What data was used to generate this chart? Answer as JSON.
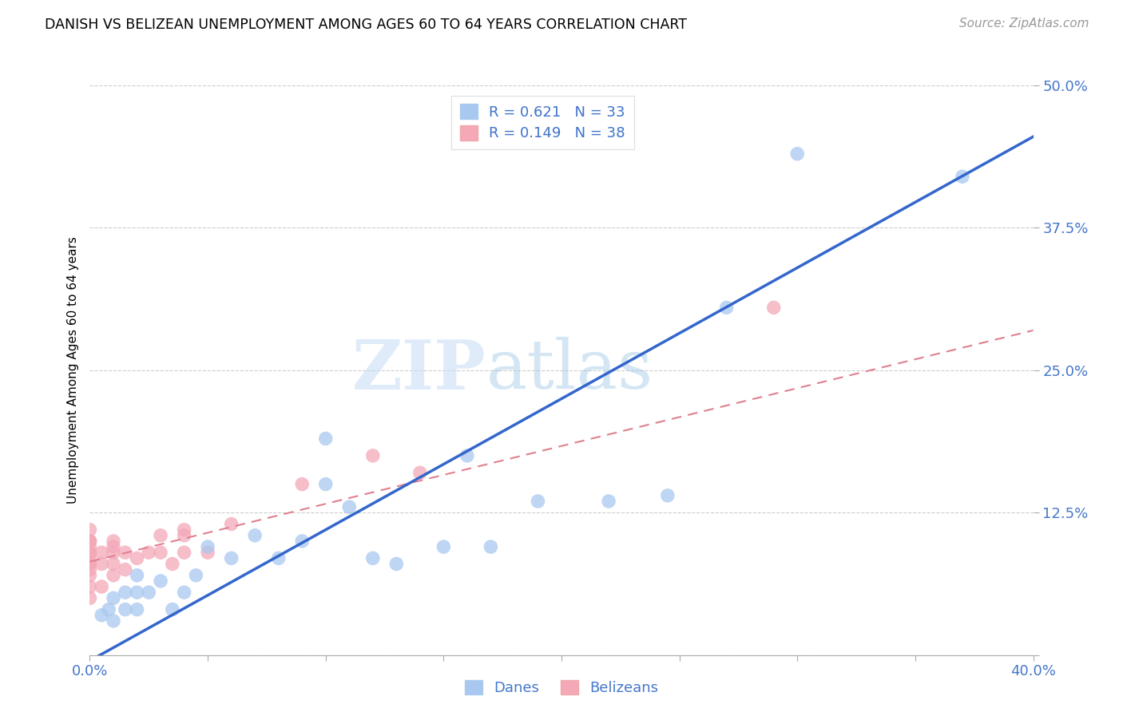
{
  "title": "DANISH VS BELIZEAN UNEMPLOYMENT AMONG AGES 60 TO 64 YEARS CORRELATION CHART",
  "source": "Source: ZipAtlas.com",
  "ylabel": "Unemployment Among Ages 60 to 64 years",
  "xlim": [
    0.0,
    0.4
  ],
  "ylim": [
    0.0,
    0.5
  ],
  "xticks": [
    0.0,
    0.05,
    0.1,
    0.15,
    0.2,
    0.25,
    0.3,
    0.35,
    0.4
  ],
  "yticks": [
    0.0,
    0.125,
    0.25,
    0.375,
    0.5
  ],
  "danes_color": "#A8C8F0",
  "belizeans_color": "#F4A8B8",
  "danes_line_color": "#3366CC",
  "belizeans_line_color": "#E08090",
  "danes_R": 0.621,
  "danes_N": 33,
  "belizeans_R": 0.149,
  "belizeans_N": 38,
  "watermark_zip": "ZIP",
  "watermark_atlas": "atlas",
  "danes_x": [
    0.005,
    0.008,
    0.01,
    0.01,
    0.015,
    0.015,
    0.02,
    0.02,
    0.02,
    0.025,
    0.03,
    0.035,
    0.04,
    0.045,
    0.05,
    0.06,
    0.07,
    0.08,
    0.09,
    0.1,
    0.1,
    0.11,
    0.12,
    0.13,
    0.15,
    0.16,
    0.17,
    0.19,
    0.22,
    0.245,
    0.27,
    0.3,
    0.37
  ],
  "danes_y": [
    0.035,
    0.04,
    0.03,
    0.05,
    0.04,
    0.055,
    0.04,
    0.055,
    0.07,
    0.055,
    0.065,
    0.04,
    0.055,
    0.07,
    0.095,
    0.085,
    0.105,
    0.085,
    0.1,
    0.15,
    0.19,
    0.13,
    0.085,
    0.08,
    0.095,
    0.175,
    0.095,
    0.135,
    0.135,
    0.14,
    0.305,
    0.44,
    0.42
  ],
  "belizeans_x": [
    0.0,
    0.0,
    0.0,
    0.0,
    0.0,
    0.0,
    0.0,
    0.0,
    0.0,
    0.0,
    0.0,
    0.0,
    0.0,
    0.0,
    0.005,
    0.005,
    0.005,
    0.01,
    0.01,
    0.01,
    0.01,
    0.01,
    0.015,
    0.015,
    0.02,
    0.025,
    0.03,
    0.03,
    0.035,
    0.04,
    0.04,
    0.04,
    0.05,
    0.06,
    0.09,
    0.12,
    0.14,
    0.29
  ],
  "belizeans_y": [
    0.05,
    0.06,
    0.07,
    0.075,
    0.08,
    0.08,
    0.085,
    0.09,
    0.09,
    0.095,
    0.1,
    0.1,
    0.1,
    0.11,
    0.06,
    0.08,
    0.09,
    0.07,
    0.08,
    0.09,
    0.095,
    0.1,
    0.075,
    0.09,
    0.085,
    0.09,
    0.09,
    0.105,
    0.08,
    0.09,
    0.105,
    0.11,
    0.09,
    0.115,
    0.15,
    0.175,
    0.16,
    0.305
  ],
  "dane_line_x0": 0.0,
  "dane_line_y0": -0.005,
  "dane_line_x1": 0.4,
  "dane_line_y1": 0.455,
  "belize_line_x0": 0.0,
  "belize_line_y0": 0.082,
  "belize_line_x1": 0.4,
  "belize_line_y1": 0.285
}
